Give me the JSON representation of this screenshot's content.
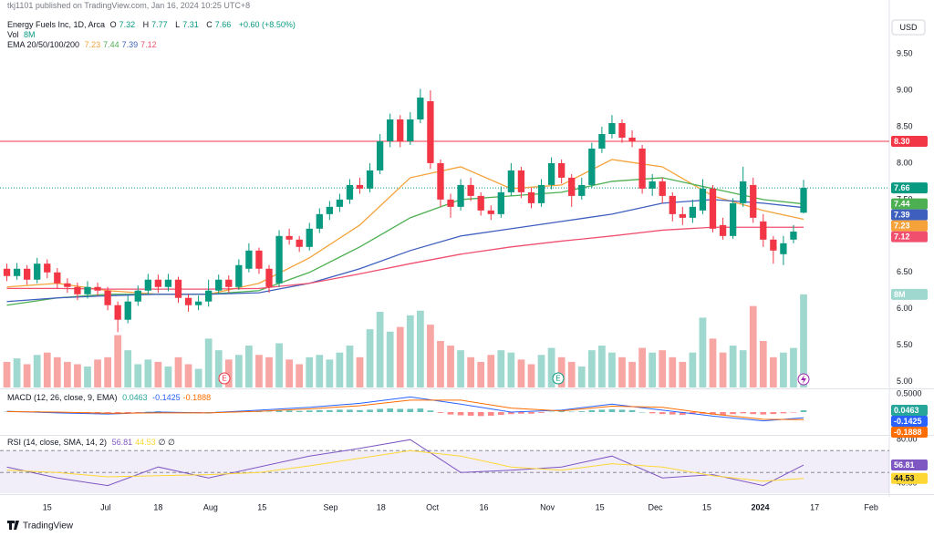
{
  "publisher": "tkj1101 published on TradingView.com, Jan 16, 2024 10:25 UTC+8",
  "currency": "USD",
  "brand": "TradingView",
  "events": [
    "E",
    "E"
  ],
  "chart_data": [
    {
      "type": "candlestick",
      "title": "Energy Fuels Inc, 1D, Arca",
      "quote_letters": [
        "O",
        "H",
        "L",
        "C"
      ],
      "change": "+0.60 (+8.50%)",
      "up_color": "#089981",
      "down_color": "#f23645",
      "xlim": [
        -0.5,
        87.5
      ],
      "xticks": [
        {
          "value": 4.0,
          "label": "15"
        },
        {
          "value": 9.8,
          "label": "Jul"
        },
        {
          "value": 15.0,
          "label": "18"
        },
        {
          "value": 20.2,
          "label": "Aug"
        },
        {
          "value": 25.3,
          "label": "15"
        },
        {
          "value": 32.1,
          "label": "Sep"
        },
        {
          "value": 37.1,
          "label": "18"
        },
        {
          "value": 42.2,
          "label": "Oct"
        },
        {
          "value": 47.3,
          "label": "16"
        },
        {
          "value": 53.6,
          "label": "Nov"
        },
        {
          "value": 58.8,
          "label": "15"
        },
        {
          "value": 64.3,
          "label": "Dec"
        },
        {
          "value": 69.4,
          "label": "15"
        },
        {
          "value": 74.7,
          "label": "2024"
        },
        {
          "value": 80.1,
          "label": "17"
        },
        {
          "value": 85.7,
          "label": "Feb"
        }
      ],
      "ylim": [
        4.92,
        10.24
      ],
      "yticks": [
        {
          "value": 5,
          "label": "5.00"
        },
        {
          "value": 5.5,
          "label": "5.50"
        },
        {
          "value": 6,
          "label": "6.00"
        },
        {
          "value": 6.5,
          "label": "6.50"
        },
        {
          "value": 7,
          "label": "7.00"
        },
        {
          "value": 7.5,
          "label": "7.50"
        },
        {
          "value": 8,
          "label": "8.00"
        },
        {
          "value": 8.5,
          "label": "8.50"
        },
        {
          "value": 9,
          "label": "9.00"
        },
        {
          "value": 9.5,
          "label": "9.50"
        }
      ],
      "grid": false,
      "open": [
        6.55,
        6.45,
        6.55,
        6.4,
        6.62,
        6.5,
        6.35,
        6.3,
        6.2,
        6.3,
        6.25,
        6.05,
        5.85,
        6.1,
        6.25,
        6.4,
        6.3,
        6.4,
        6.15,
        6.05,
        6.1,
        6.25,
        6.4,
        6.3,
        6.55,
        6.8,
        6.55,
        6.35,
        7.0,
        6.95,
        6.85,
        7.1,
        7.3,
        7.4,
        7.5,
        7.7,
        7.65,
        7.9,
        8.3,
        8.6,
        8.3,
        8.6,
        8.85,
        8.0,
        7.5,
        7.4,
        7.7,
        7.55,
        7.35,
        7.3,
        7.6,
        7.9,
        7.6,
        7.45,
        7.7,
        8.0,
        7.8,
        7.55,
        7.7,
        8.2,
        8.4,
        8.55,
        8.35,
        8.2,
        7.65,
        7.75,
        7.55,
        7.3,
        7.25,
        7.35,
        7.65,
        7.15,
        7.0,
        7.45,
        7.7,
        7.2,
        6.95,
        6.75,
        6.95,
        7.32
      ],
      "high": [
        6.62,
        6.63,
        6.6,
        6.7,
        6.68,
        6.56,
        6.42,
        6.36,
        6.38,
        6.36,
        6.3,
        6.1,
        6.18,
        6.32,
        6.48,
        6.47,
        6.48,
        6.44,
        6.2,
        6.18,
        6.4,
        6.47,
        6.46,
        6.68,
        6.9,
        6.84,
        6.6,
        7.08,
        7.1,
        7.0,
        7.18,
        7.38,
        7.48,
        7.58,
        7.78,
        7.8,
        8.0,
        8.4,
        8.68,
        8.66,
        8.7,
        9.02,
        9.0,
        8.05,
        7.58,
        7.78,
        7.8,
        7.6,
        7.42,
        7.68,
        8.0,
        7.95,
        7.66,
        7.78,
        8.08,
        8.05,
        7.85,
        7.8,
        8.28,
        8.5,
        8.66,
        8.6,
        8.45,
        8.25,
        7.85,
        7.8,
        7.6,
        7.4,
        7.5,
        7.78,
        7.7,
        7.25,
        7.52,
        7.95,
        7.8,
        7.3,
        7.0,
        7.0,
        7.15,
        7.77
      ],
      "low": [
        6.38,
        6.4,
        6.33,
        6.35,
        6.42,
        6.28,
        6.22,
        6.12,
        6.14,
        6.18,
        5.98,
        5.68,
        5.8,
        6.04,
        6.2,
        6.22,
        6.24,
        6.08,
        5.96,
        5.98,
        6.03,
        6.2,
        6.22,
        6.26,
        6.5,
        6.48,
        6.22,
        6.3,
        6.88,
        6.78,
        6.8,
        7.04,
        7.22,
        7.33,
        7.44,
        7.58,
        7.6,
        7.85,
        8.22,
        8.22,
        8.25,
        8.55,
        7.92,
        7.4,
        7.25,
        7.35,
        7.48,
        7.28,
        7.22,
        7.25,
        7.55,
        7.52,
        7.38,
        7.4,
        7.64,
        7.72,
        7.4,
        7.5,
        7.66,
        8.14,
        8.34,
        8.28,
        8.22,
        7.58,
        7.55,
        7.45,
        7.2,
        7.15,
        7.18,
        7.3,
        7.05,
        6.95,
        6.96,
        7.4,
        7.18,
        6.85,
        6.62,
        6.6,
        6.9,
        7.31
      ],
      "close": [
        6.45,
        6.55,
        6.4,
        6.62,
        6.5,
        6.35,
        6.3,
        6.2,
        6.3,
        6.25,
        6.05,
        5.85,
        6.1,
        6.25,
        6.4,
        6.3,
        6.4,
        6.15,
        6.05,
        6.1,
        6.25,
        6.4,
        6.3,
        6.6,
        6.8,
        6.55,
        6.3,
        7.0,
        6.95,
        6.85,
        7.1,
        7.3,
        7.4,
        7.5,
        7.7,
        7.65,
        7.9,
        8.3,
        8.6,
        8.3,
        8.6,
        8.9,
        8.0,
        7.5,
        7.4,
        7.7,
        7.55,
        7.35,
        7.3,
        7.6,
        7.9,
        7.6,
        7.45,
        7.7,
        8.0,
        7.8,
        7.55,
        7.7,
        8.2,
        8.4,
        8.55,
        8.35,
        8.3,
        7.65,
        7.75,
        7.55,
        7.3,
        7.25,
        7.4,
        7.65,
        7.1,
        7.0,
        7.45,
        7.75,
        7.25,
        6.95,
        6.8,
        6.9,
        7.06,
        7.66
      ],
      "volume_title": "Vol",
      "volume_last_label": "8M",
      "volume_lim": [
        0,
        33.3
      ],
      "volume": [
        2.2,
        2.5,
        2.0,
        2.8,
        3.0,
        2.6,
        2.2,
        2.0,
        1.8,
        2.4,
        2.6,
        4.5,
        3.2,
        2.0,
        2.4,
        2.2,
        1.8,
        2.6,
        2.0,
        1.6,
        4.2,
        3.2,
        2.4,
        2.8,
        3.6,
        2.8,
        2.6,
        3.8,
        2.4,
        2.0,
        2.6,
        2.8,
        2.4,
        3.0,
        3.6,
        2.6,
        5.0,
        6.5,
        4.8,
        5.2,
        6.2,
        6.6,
        5.4,
        4.0,
        3.6,
        3.2,
        2.6,
        2.2,
        2.8,
        3.2,
        3.0,
        2.4,
        2.0,
        2.8,
        3.4,
        2.6,
        2.2,
        1.8,
        3.2,
        3.6,
        3.0,
        2.6,
        2.2,
        3.4,
        3.0,
        3.2,
        2.6,
        2.2,
        3.0,
        6.0,
        4.2,
        3.0,
        3.6,
        3.2,
        7.0,
        4.0,
        2.6,
        3.0,
        3.4,
        8.0
      ],
      "volume_up_color": "#9fd8cf",
      "volume_down_color": "#f7a6a4",
      "hline": {
        "value": 8.3,
        "label": "8.30",
        "color": "#f23645"
      },
      "last_price_color": "#089981",
      "indicator_title": "EMA 20/50/100/200",
      "ema": [
        {
          "color": "#f5a23a",
          "x": [
            0,
            5,
            10,
            15,
            20,
            25,
            30,
            35,
            40,
            45,
            50,
            55,
            60,
            65,
            70,
            75,
            79
          ],
          "values": [
            6.3,
            6.35,
            6.25,
            6.2,
            6.2,
            6.35,
            6.7,
            7.15,
            7.8,
            7.95,
            7.65,
            7.7,
            8.05,
            7.95,
            7.55,
            7.35,
            7.23
          ]
        },
        {
          "color": "#4caf50",
          "x": [
            0,
            5,
            10,
            15,
            20,
            25,
            30,
            35,
            40,
            45,
            50,
            55,
            60,
            65,
            70,
            75,
            79
          ],
          "values": [
            6.05,
            6.15,
            6.2,
            6.2,
            6.2,
            6.25,
            6.5,
            6.85,
            7.25,
            7.5,
            7.55,
            7.6,
            7.75,
            7.8,
            7.65,
            7.5,
            7.44
          ]
        },
        {
          "color": "#3f5fbf",
          "x": [
            0,
            5,
            10,
            15,
            20,
            25,
            30,
            35,
            40,
            45,
            50,
            55,
            60,
            65,
            70,
            75,
            79
          ],
          "values": [
            6.1,
            6.15,
            6.18,
            6.2,
            6.2,
            6.22,
            6.35,
            6.55,
            6.8,
            7.0,
            7.1,
            7.2,
            7.3,
            7.45,
            7.5,
            7.45,
            7.39
          ]
        },
        {
          "color": "#f0506e",
          "x": [
            0,
            5,
            10,
            15,
            20,
            25,
            30,
            35,
            40,
            45,
            50,
            55,
            60,
            65,
            70,
            75,
            79
          ],
          "values": [
            6.28,
            6.28,
            6.27,
            6.27,
            6.27,
            6.28,
            6.35,
            6.48,
            6.62,
            6.75,
            6.85,
            6.93,
            7.0,
            7.08,
            7.12,
            7.12,
            7.12
          ]
        }
      ]
    },
    {
      "type": "macd",
      "title": "MACD (12, 26, close, 9, EMA)",
      "ylim": [
        -0.55,
        0.55
      ],
      "yticks": [
        {
          "value": 0.5,
          "label": "0.5000"
        }
      ],
      "histogram_up_color": "#26a69a",
      "histogram_down_color": "#ff5252",
      "histogram": [
        0.01,
        0.02,
        0.01,
        0.02,
        0.01,
        -0.01,
        -0.02,
        -0.02,
        -0.03,
        -0.02,
        -0.02,
        -0.04,
        -0.03,
        -0.01,
        0.01,
        0.02,
        0.01,
        0.0,
        -0.01,
        -0.01,
        0.0,
        0.01,
        0.01,
        0.02,
        0.03,
        0.02,
        0.01,
        0.04,
        0.04,
        0.03,
        0.04,
        0.05,
        0.05,
        0.06,
        0.06,
        0.05,
        0.06,
        0.08,
        0.09,
        0.08,
        0.08,
        0.09,
        0.04,
        -0.02,
        -0.06,
        -0.08,
        -0.09,
        -0.1,
        -0.09,
        -0.07,
        -0.05,
        -0.04,
        -0.04,
        -0.02,
        0.01,
        0.02,
        0.01,
        0.02,
        0.05,
        0.06,
        0.07,
        0.06,
        0.05,
        0.0,
        -0.03,
        -0.05,
        -0.06,
        -0.07,
        -0.05,
        -0.04,
        -0.06,
        -0.07,
        -0.05,
        -0.03,
        -0.05,
        -0.06,
        -0.05,
        -0.03,
        -0.01,
        0.0463
      ],
      "series": [
        {
          "color": "#2962ff",
          "x": [
            0,
            5,
            10,
            15,
            20,
            25,
            30,
            35,
            40,
            45,
            50,
            55,
            60,
            65,
            70,
            75,
            79
          ],
          "values": [
            0.02,
            -0.02,
            -0.05,
            0.0,
            -0.02,
            0.05,
            0.12,
            0.22,
            0.38,
            0.2,
            0.0,
            0.05,
            0.2,
            0.05,
            -0.1,
            -0.22,
            -0.1425
          ]
        },
        {
          "color": "#ff6d00",
          "x": [
            0,
            5,
            10,
            15,
            20,
            25,
            30,
            35,
            40,
            45,
            50,
            55,
            60,
            65,
            70,
            75,
            79
          ],
          "values": [
            0.01,
            0.0,
            -0.03,
            -0.02,
            -0.02,
            0.02,
            0.08,
            0.16,
            0.3,
            0.3,
            0.1,
            0.03,
            0.15,
            0.12,
            -0.05,
            -0.18,
            -0.1888
          ]
        }
      ]
    },
    {
      "type": "rsi",
      "title": "RSI (14, close, SMA, 14, 2)",
      "extra": "∅ ∅",
      "ylim": [
        31,
        83.5
      ],
      "yticks": [
        {
          "value": 80,
          "label": "80.00"
        },
        {
          "value": 40,
          "label": "40.00"
        }
      ],
      "bands": [
        30,
        50,
        70
      ],
      "band_color": "#7e57c2",
      "series": [
        {
          "color": "#7e57c2",
          "x": [
            0,
            5,
            10,
            15,
            20,
            25,
            30,
            35,
            40,
            45,
            50,
            55,
            60,
            65,
            70,
            75,
            79
          ],
          "values": [
            55,
            45,
            38,
            55,
            45,
            55,
            65,
            72,
            80,
            50,
            52,
            55,
            65,
            45,
            48,
            38,
            56.81
          ]
        },
        {
          "color": "#fdd835",
          "x": [
            0,
            5,
            10,
            15,
            20,
            25,
            30,
            35,
            40,
            45,
            50,
            55,
            60,
            65,
            70,
            75,
            79
          ],
          "values": [
            52,
            50,
            46,
            47,
            48,
            50,
            56,
            63,
            70,
            65,
            55,
            52,
            58,
            55,
            47,
            42,
            44.53
          ]
        }
      ]
    }
  ]
}
